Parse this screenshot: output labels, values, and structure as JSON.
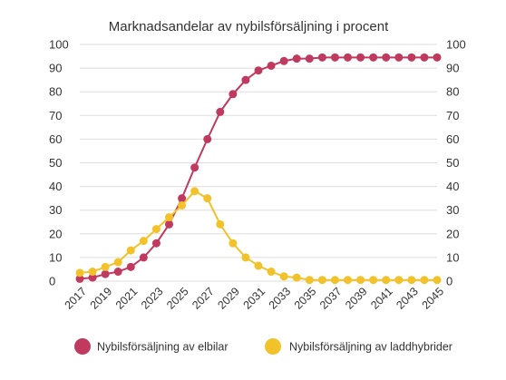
{
  "chart_data": {
    "type": "line",
    "title": "Marknadsandelar av nybilsförsäljning i procent",
    "xlabel": "",
    "ylabel": "",
    "ylim": [
      0,
      100
    ],
    "yticks": [
      0,
      10,
      20,
      30,
      40,
      50,
      60,
      70,
      80,
      90,
      100
    ],
    "x": [
      2017,
      2018,
      2019,
      2020,
      2021,
      2022,
      2023,
      2024,
      2025,
      2026,
      2027,
      2028,
      2029,
      2030,
      2031,
      2032,
      2033,
      2034,
      2035,
      2036,
      2037,
      2038,
      2039,
      2040,
      2041,
      2042,
      2043,
      2044,
      2045
    ],
    "xtick_labels": [
      "2017",
      "2019",
      "2021",
      "2023",
      "2025",
      "2027",
      "2029",
      "2031",
      "2033",
      "2035",
      "2037",
      "2039",
      "2041",
      "2043",
      "2045"
    ],
    "grid": true,
    "legend_position": "bottom",
    "series": [
      {
        "name": "Nybilsförsäljning av elbilar",
        "color": "#c0395e",
        "values": [
          1,
          1.5,
          3,
          4,
          6,
          10,
          16,
          24,
          35,
          48,
          60,
          71.5,
          79,
          85,
          89,
          91,
          93,
          94,
          94,
          94.5,
          94.5,
          94.5,
          94.5,
          94.5,
          94.5,
          94.5,
          94.5,
          94.5,
          94.5
        ]
      },
      {
        "name": "Nybilsförsäljning av laddhybrider",
        "color": "#f2c22a",
        "values": [
          3.5,
          4,
          6,
          8,
          13,
          17,
          22,
          27,
          32,
          38,
          35,
          24,
          16,
          10,
          6.5,
          4,
          2,
          1.5,
          0.5,
          0.5,
          0.5,
          0.5,
          0.5,
          0.5,
          0.5,
          0.5,
          0.5,
          0.5,
          0.5
        ]
      }
    ]
  }
}
